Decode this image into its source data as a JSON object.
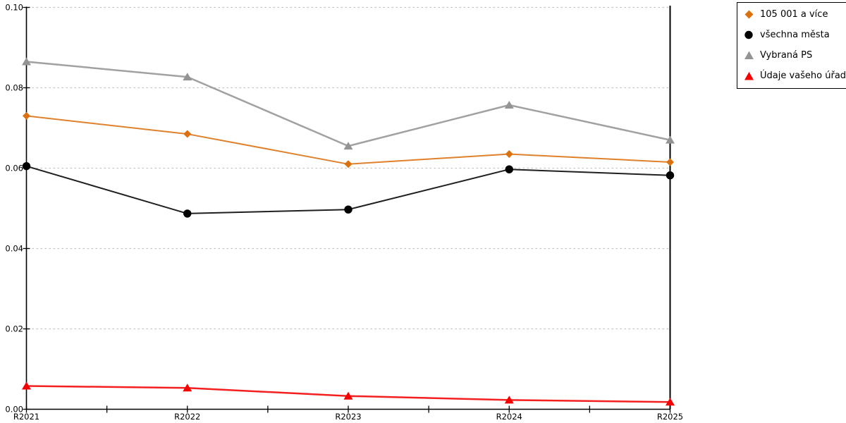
{
  "chart_data": {
    "type": "line",
    "title": "",
    "categories": [
      "R2021",
      "R2022",
      "R2023",
      "R2024",
      "R2025"
    ],
    "series": [
      {
        "name": "105 001 a více",
        "marker": "diamond",
        "color": "#db700f",
        "line_width": 2,
        "values": [
          0.073,
          0.0685,
          0.061,
          0.0635,
          0.0615
        ]
      },
      {
        "name": "všechna města",
        "marker": "circle",
        "color": "#000000",
        "line_width": 2,
        "values": [
          0.0605,
          0.0487,
          0.0497,
          0.0597,
          0.0582
        ]
      },
      {
        "name": "Vybraná PS",
        "marker": "triangle",
        "color": "#949494",
        "line_width": 2.5,
        "values": [
          0.0865,
          0.0827,
          0.0655,
          0.0757,
          0.067
        ]
      },
      {
        "name": "Údaje vašeho úřadu",
        "marker": "triangle",
        "color": "#f40000",
        "line_width": 2.5,
        "values": [
          0.0058,
          0.0053,
          0.0033,
          0.0023,
          0.0018
        ]
      }
    ],
    "xlabel": "",
    "ylabel": "",
    "ylim": [
      0,
      0.1
    ],
    "y_ticks": [
      "0.00",
      "0.02",
      "0.04",
      "0.06",
      "0.08",
      "0.10"
    ],
    "grid": "horizontal-dotted",
    "gridline_color": "#c3c3c3",
    "axis_color": "#000000",
    "legend_position": "top-right"
  }
}
